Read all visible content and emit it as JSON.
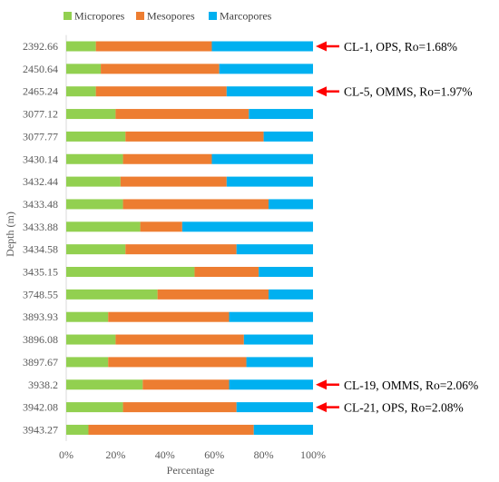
{
  "chart_data": {
    "type": "bar",
    "orientation": "horizontal",
    "stacked": "percent",
    "xlabel": "Percentage",
    "ylabel": "Depth (m)",
    "xlim": [
      0,
      100
    ],
    "x_ticks": [
      "0%",
      "20%",
      "40%",
      "60%",
      "80%",
      "100%"
    ],
    "grid": false,
    "legend_position": "top",
    "categories": [
      "2392.66",
      "2450.64",
      "2465.24",
      "3077.12",
      "3077.77",
      "3430.14",
      "3432.44",
      "3433.48",
      "3433.88",
      "3434.58",
      "3435.15",
      "3748.55",
      "3893.93",
      "3896.08",
      "3897.67",
      "3938.2",
      "3942.08",
      "3943.27"
    ],
    "series": [
      {
        "name": "Micropores",
        "color": "#92D050",
        "values": [
          12,
          14,
          12,
          20,
          24,
          23,
          22,
          23,
          30,
          24,
          52,
          37,
          17,
          20,
          17,
          31,
          23,
          9
        ]
      },
      {
        "name": "Mesopores",
        "color": "#ED7D31",
        "values": [
          47,
          48,
          53,
          54,
          56,
          36,
          43,
          59,
          17,
          45,
          26,
          45,
          49,
          52,
          56,
          35,
          46,
          67
        ]
      },
      {
        "name": "Marcopores",
        "color": "#00B0F0",
        "values": [
          41,
          38,
          35,
          26,
          20,
          41,
          35,
          18,
          53,
          31,
          22,
          18,
          34,
          28,
          27,
          34,
          31,
          24
        ]
      }
    ],
    "annotations": [
      {
        "category": "2392.66",
        "text": "CL-1, OPS, Ro=1.68%",
        "arrow_color": "#FF0000"
      },
      {
        "category": "2465.24",
        "text": "CL-5, OMMS, Ro=1.97%",
        "arrow_color": "#FF0000"
      },
      {
        "category": "3938.2",
        "text": "CL-19, OMMS, Ro=2.06%",
        "arrow_color": "#FF0000"
      },
      {
        "category": "3942.08",
        "text": "CL-21, OPS, Ro=2.08%",
        "arrow_color": "#FF0000"
      }
    ]
  }
}
